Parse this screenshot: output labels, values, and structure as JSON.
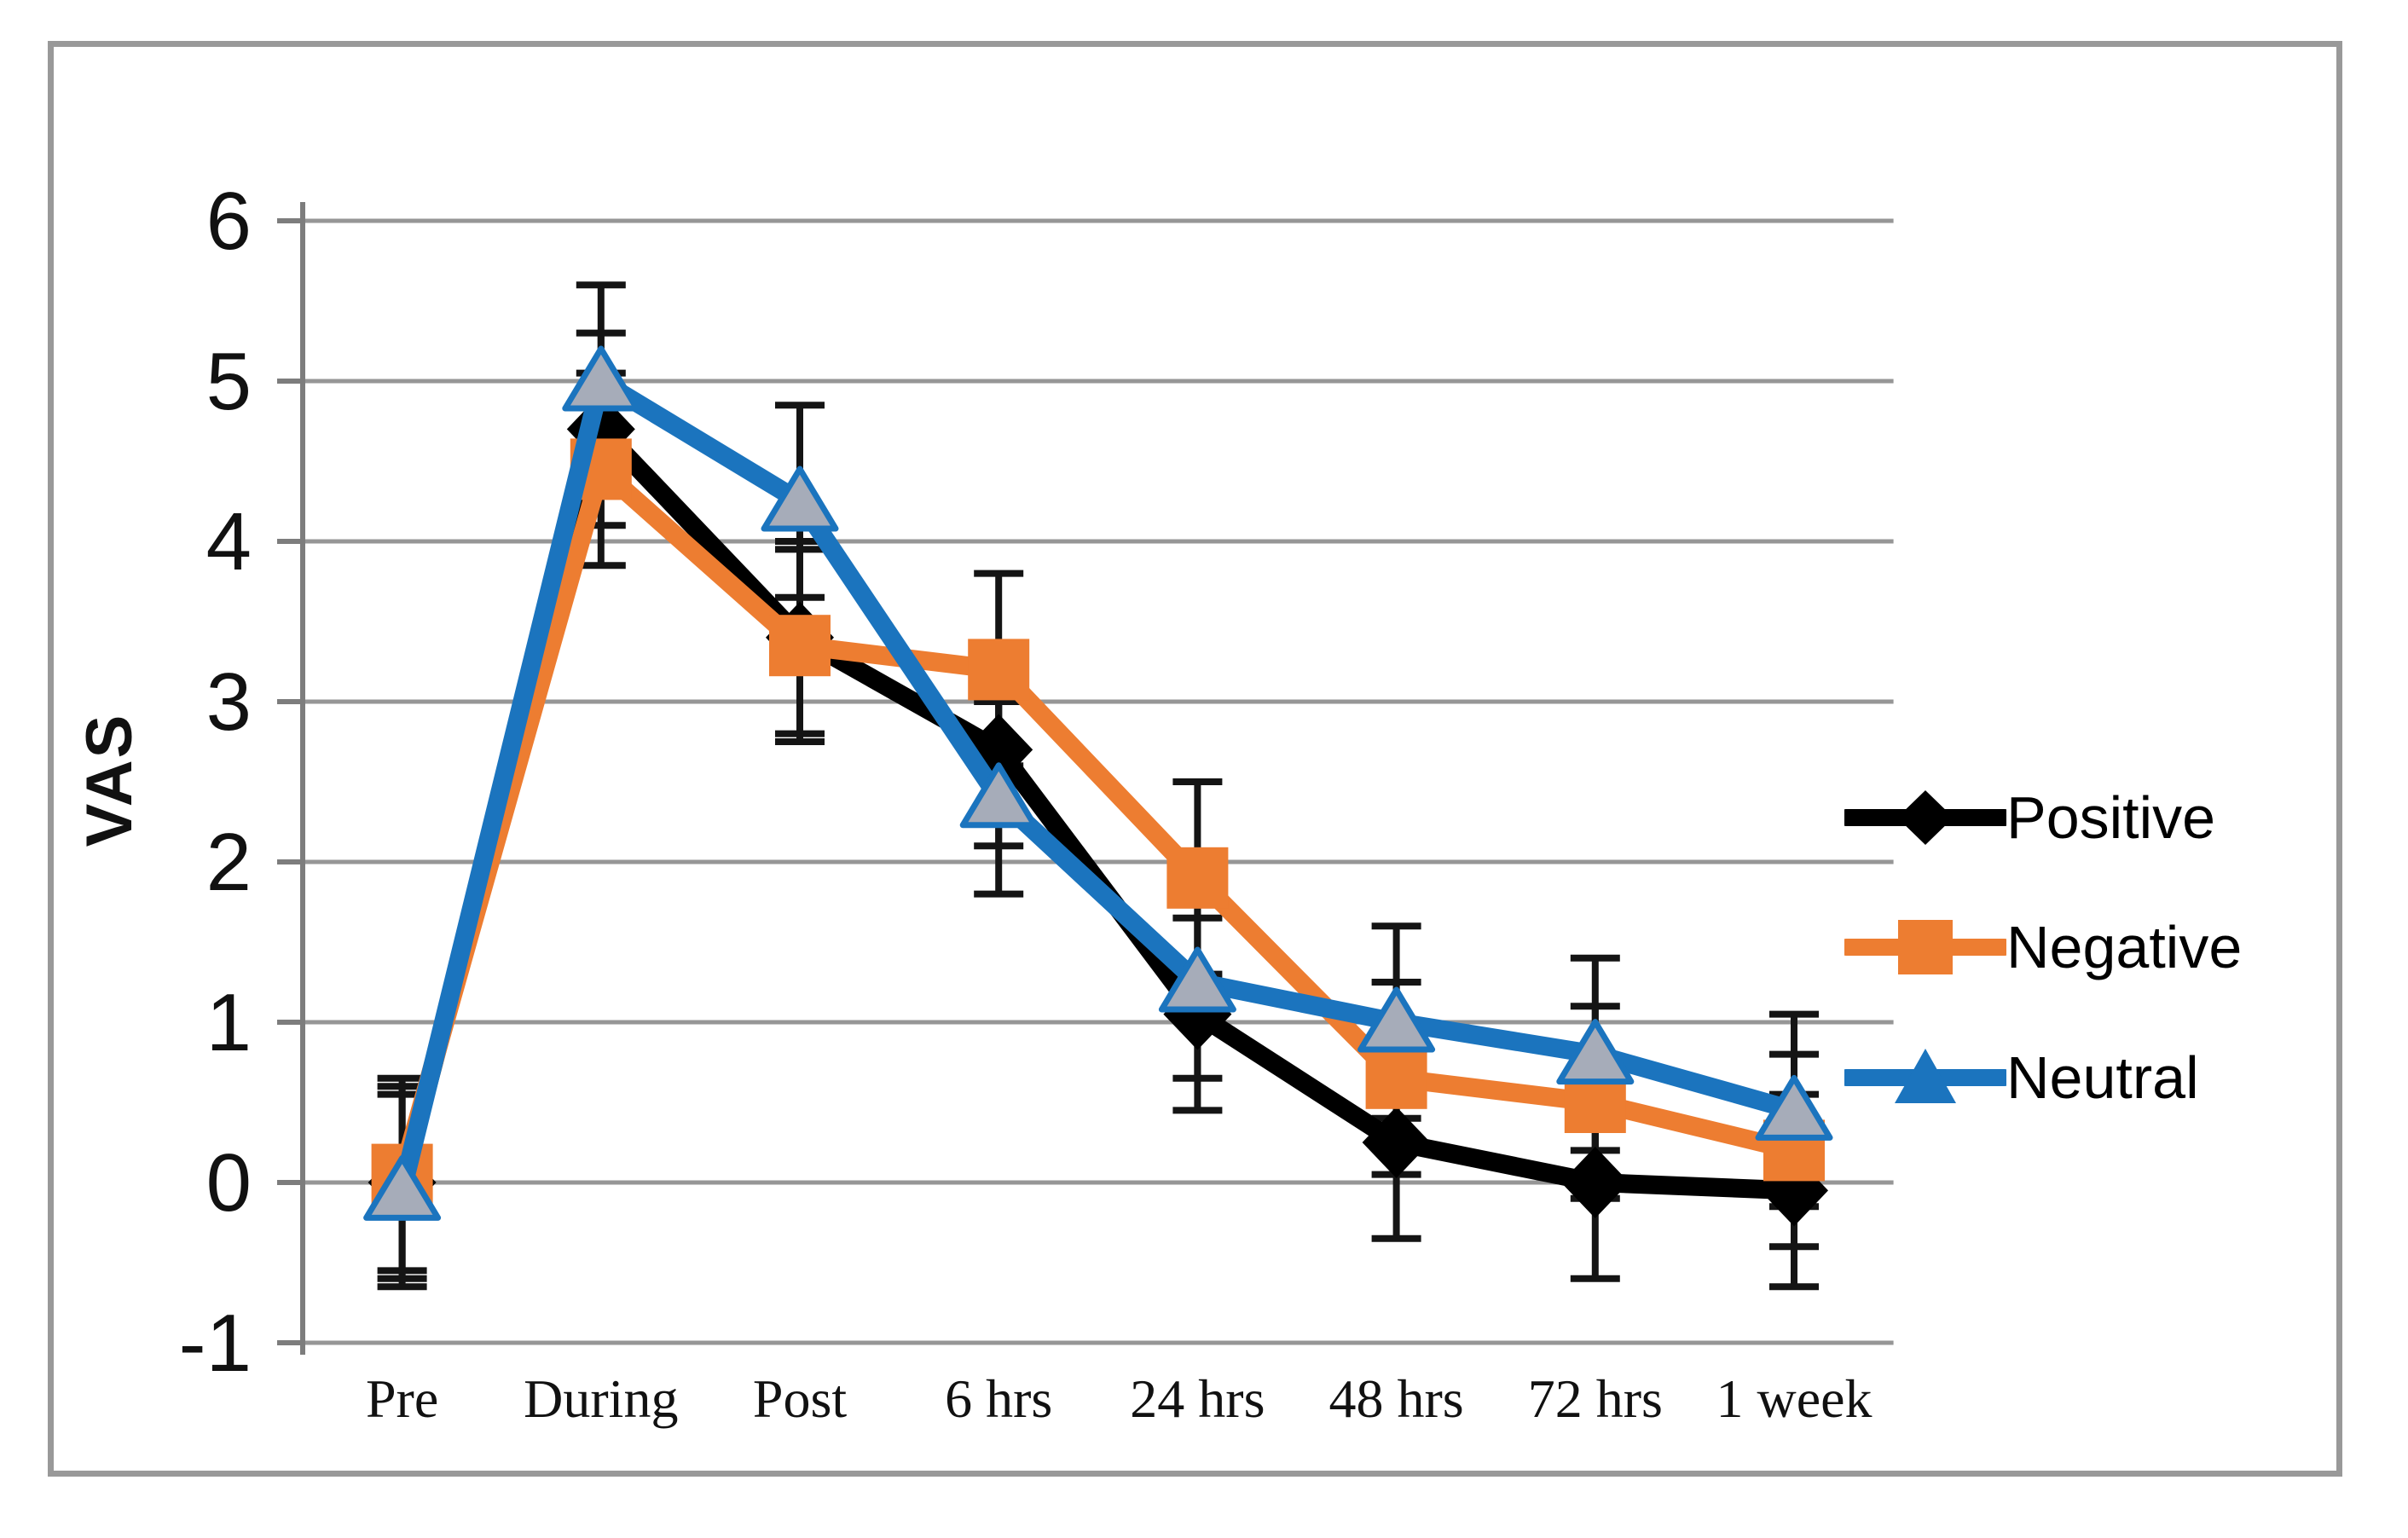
{
  "chart_data": {
    "type": "line",
    "title": "",
    "xlabel": "",
    "ylabel": "VAS",
    "ylim": [
      -1,
      6
    ],
    "yticks": [
      6,
      5,
      4,
      3,
      2,
      1,
      0,
      -1
    ],
    "grid": true,
    "legend_position": "right",
    "categories": [
      "Pre",
      "During",
      "Post",
      "6 hrs",
      "24 hrs",
      "48 hrs",
      "72 hrs",
      "1 week"
    ],
    "series": [
      {
        "name": "Positive",
        "marker": "diamond",
        "color": "#000000",
        "values": [
          0.0,
          4.7,
          3.4,
          2.7,
          1.05,
          0.25,
          0.0,
          -0.05
        ],
        "error": 0.6
      },
      {
        "name": "Negative",
        "marker": "square",
        "color": "#ED7D31",
        "values": [
          0.05,
          4.45,
          3.35,
          3.2,
          1.9,
          0.65,
          0.5,
          0.2
        ],
        "error": 0.6
      },
      {
        "name": "Neutral",
        "marker": "triangle",
        "color": "#1B74BE",
        "marker_fill": "#A6ACB9",
        "values": [
          -0.05,
          5.0,
          4.25,
          2.4,
          1.25,
          1.0,
          0.8,
          0.45
        ],
        "error": 0.6
      }
    ]
  },
  "style": {
    "gridline_color": "#969696",
    "axis_color": "#7d7d7d",
    "frame_color": "#999999",
    "error_bar_color": "#141414",
    "text_color": "#111111",
    "background": "#ffffff"
  }
}
